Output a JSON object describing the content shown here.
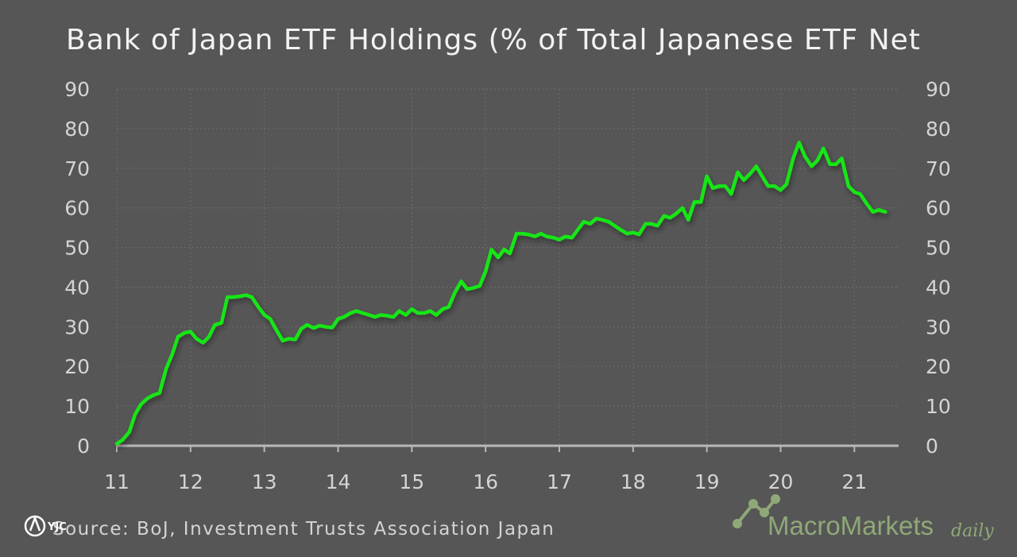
{
  "chart_data": {
    "type": "line",
    "title": "Bank of Japan ETF Holdings (% of Total Japanese ETF Net",
    "xlabel": "",
    "ylabel": "",
    "xlim": [
      11,
      21.6
    ],
    "ylim": [
      0,
      90
    ],
    "x_ticks": [
      11,
      12,
      13,
      14,
      15,
      16,
      17,
      18,
      19,
      20,
      21
    ],
    "x_tick_labels": [
      "11",
      "12",
      "13",
      "14",
      "15",
      "16",
      "17",
      "18",
      "19",
      "20",
      "21"
    ],
    "y_ticks": [
      0,
      10,
      20,
      30,
      40,
      50,
      60,
      70,
      80,
      90
    ],
    "y_tick_labels": [
      "0",
      "10",
      "20",
      "30",
      "40",
      "50",
      "60",
      "70",
      "80",
      "90"
    ],
    "grid": true,
    "legend": "none",
    "series": [
      {
        "color": "#19e619",
        "x": [
          11.0,
          11.08,
          11.17,
          11.25,
          11.33,
          11.42,
          11.5,
          11.58,
          11.67,
          11.75,
          11.83,
          11.92,
          12.0,
          12.08,
          12.17,
          12.25,
          12.33,
          12.42,
          12.5,
          12.58,
          12.67,
          12.75,
          12.83,
          12.92,
          13.0,
          13.08,
          13.17,
          13.25,
          13.33,
          13.42,
          13.5,
          13.58,
          13.67,
          13.75,
          13.83,
          13.92,
          14.0,
          14.08,
          14.17,
          14.25,
          14.33,
          14.42,
          14.5,
          14.58,
          14.67,
          14.75,
          14.83,
          14.92,
          15.0,
          15.08,
          15.17,
          15.25,
          15.33,
          15.42,
          15.5,
          15.58,
          15.67,
          15.75,
          15.83,
          15.92,
          16.0,
          16.08,
          16.17,
          16.25,
          16.33,
          16.42,
          16.5,
          16.58,
          16.67,
          16.75,
          16.83,
          16.92,
          17.0,
          17.08,
          17.17,
          17.25,
          17.33,
          17.42,
          17.5,
          17.58,
          17.67,
          17.75,
          17.83,
          17.92,
          18.0,
          18.08,
          18.17,
          18.25,
          18.33,
          18.42,
          18.5,
          18.58,
          18.67,
          18.75,
          18.83,
          18.92,
          19.0,
          19.08,
          19.17,
          19.25,
          19.33,
          19.42,
          19.5,
          19.58,
          19.67,
          19.75,
          19.83,
          19.92,
          20.0,
          20.08,
          20.17,
          20.25,
          20.33,
          20.42,
          20.5,
          20.58,
          20.67,
          20.75,
          20.83,
          20.92,
          21.0,
          21.08,
          21.17,
          21.25,
          21.33,
          21.42
        ],
        "y": [
          0.5,
          1.5,
          3.5,
          8.0,
          10.5,
          12.0,
          12.8,
          13.3,
          19.5,
          23.0,
          27.5,
          28.5,
          28.8,
          27.0,
          26.0,
          27.5,
          30.5,
          31.0,
          37.5,
          37.5,
          37.7,
          38.0,
          37.5,
          35.0,
          33.0,
          32.0,
          29.0,
          26.5,
          27.0,
          26.8,
          29.5,
          30.5,
          29.7,
          30.3,
          30.0,
          29.8,
          32.0,
          32.5,
          33.5,
          34.0,
          33.5,
          33.0,
          32.5,
          33.0,
          32.8,
          32.5,
          34.0,
          33.0,
          34.5,
          33.5,
          33.5,
          34.0,
          33.0,
          34.5,
          35.0,
          38.5,
          41.5,
          39.5,
          39.8,
          40.3,
          44.0,
          49.5,
          47.5,
          49.5,
          48.5,
          53.5,
          53.5,
          53.3,
          52.8,
          53.5,
          52.8,
          52.5,
          52.0,
          52.8,
          52.5,
          54.5,
          56.5,
          56.0,
          57.3,
          57.0,
          56.5,
          55.5,
          54.5,
          53.5,
          53.8,
          53.3,
          56.0,
          56.0,
          55.5,
          58.0,
          57.5,
          58.5,
          60.0,
          57.0,
          61.5,
          61.5,
          68.0,
          65.0,
          65.5,
          65.5,
          63.5,
          69.0,
          67.0,
          68.5,
          70.5,
          68.0,
          65.5,
          65.5,
          64.5,
          66.0,
          72.5,
          76.5,
          73.0,
          70.5,
          72.0,
          75.0,
          71.0,
          71.0,
          72.5,
          65.5,
          64.0,
          63.5,
          61.0,
          59.0,
          59.5,
          59.0
        ]
      }
    ]
  },
  "source_text": "Source: BoJ,  Investment Trusts Association Japan",
  "brand": {
    "main": "MacroMarkets",
    "sub": "daily",
    "color": "#8fa878"
  },
  "watermark": {
    "text": "YJC"
  }
}
